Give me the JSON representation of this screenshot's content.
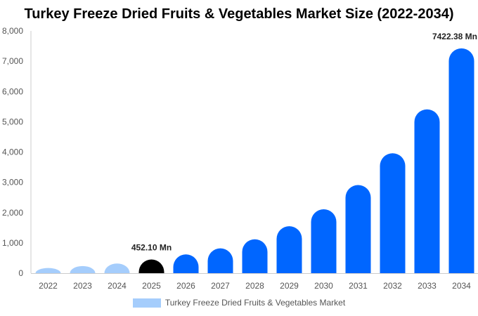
{
  "chart_data": {
    "type": "bar",
    "title": "Turkey Freeze Dried Fruits & Vegetables Market Size (2022-2034)",
    "xlabel": "",
    "ylabel": "",
    "ylim": [
      0,
      8000
    ],
    "yticks": [
      0,
      1000,
      2000,
      3000,
      4000,
      5000,
      6000,
      7000,
      8000
    ],
    "yticklabels": [
      "0",
      "1,000",
      "2,000",
      "3,000",
      "4,000",
      "5,000",
      "6,000",
      "7,000",
      "8,000"
    ],
    "categories": [
      "2022",
      "2023",
      "2024",
      "2025",
      "2026",
      "2027",
      "2028",
      "2029",
      "2030",
      "2031",
      "2032",
      "2033",
      "2034"
    ],
    "series": [
      {
        "name": "Turkey Freeze Dried Fruits & Vegetables Market",
        "values": [
          170,
          235,
          320,
          452.1,
          620,
          820,
          1120,
          1550,
          2110,
          2910,
          3960,
          5410,
          7422.38
        ]
      }
    ],
    "data_labels": [
      {
        "category": "2025",
        "text": "452.10 Mn"
      },
      {
        "category": "2034",
        "text": "7422.38 Mn"
      }
    ],
    "colors": {
      "historical": "#a5cdfc",
      "current": "#000000",
      "forecast": "#0066ff",
      "legend": "#a5cdfc"
    },
    "legend": "bottom-center",
    "grid": false
  }
}
